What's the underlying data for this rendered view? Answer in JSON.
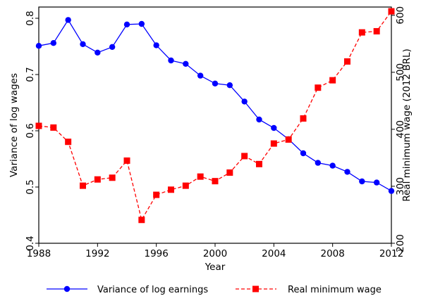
{
  "chart_data": {
    "type": "line",
    "x": [
      1988,
      1989,
      1990,
      1991,
      1992,
      1993,
      1994,
      1995,
      1996,
      1997,
      1998,
      1999,
      2000,
      2001,
      2002,
      2003,
      2004,
      2005,
      2006,
      2007,
      2008,
      2009,
      2010,
      2011,
      2012
    ],
    "xlabel": "Year",
    "xlim": [
      1988,
      2012
    ],
    "xticks": [
      1988,
      1992,
      1996,
      2000,
      2004,
      2008,
      2012
    ],
    "ylabel_left": "Variance of log wages",
    "ylim_left": [
      0.4,
      0.82
    ],
    "yticks_left": [
      "0.4",
      "0.5",
      "0.6",
      "0.7",
      "0.8"
    ],
    "ylabel_right": "Real minimum wage (2012 BRL)",
    "ylim_right": [
      200,
      614.5
    ],
    "yticks_right": [
      "200",
      "300",
      "400",
      "500",
      "600"
    ],
    "grid": false,
    "legend_position": "bottom",
    "series": [
      {
        "name": "Variance of log earnings",
        "axis": "left",
        "color": "#0000ff",
        "line_style": "solid",
        "marker": "circle",
        "values": [
          0.751,
          0.756,
          0.797,
          0.754,
          0.739,
          0.749,
          0.789,
          0.79,
          0.752,
          0.725,
          0.719,
          0.698,
          0.684,
          0.681,
          0.652,
          0.62,
          0.605,
          0.585,
          0.56,
          0.543,
          0.538,
          0.527,
          0.51,
          0.508,
          0.493
        ]
      },
      {
        "name": "Real minimum wage",
        "axis": "right",
        "color": "#ff0000",
        "line_style": "dashed",
        "marker": "square",
        "values": [
          406,
          403,
          378,
          301,
          312,
          315,
          345,
          241,
          285,
          294,
          301,
          317,
          309,
          324,
          353,
          339,
          375,
          382,
          419,
          473,
          486,
          519,
          570,
          572,
          607
        ]
      }
    ]
  }
}
